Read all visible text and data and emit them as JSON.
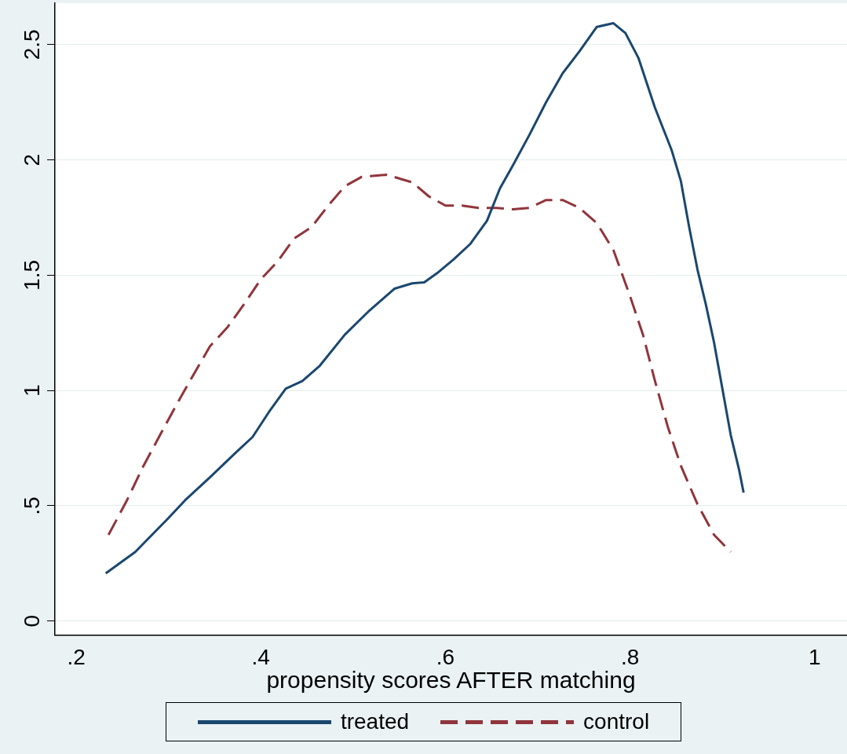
{
  "chart_data": {
    "type": "line",
    "xlabel": "propensity scores AFTER matching",
    "xlim": [
      0.177,
      1.035
    ],
    "xticks": [
      {
        "value": 0.2,
        "label": ".2"
      },
      {
        "value": 0.4,
        "label": ".4"
      },
      {
        "value": 0.6,
        "label": ".6"
      },
      {
        "value": 0.8,
        "label": ".8"
      },
      1
    ],
    "ylim": [
      -0.06,
      2.68
    ],
    "yticks": [
      0,
      {
        "value": 0.5,
        "label": ".5"
      },
      1,
      {
        "value": 1.5,
        "label": "1.5"
      },
      2,
      {
        "value": 2.5,
        "label": "2.5"
      }
    ],
    "grid": "y",
    "legend": "bottom",
    "marker": "none",
    "series": [
      {
        "name": "treated",
        "color": "#1a476f",
        "line_style": "solid",
        "x": [
          0.232,
          0.264,
          0.3,
          0.318,
          0.345,
          0.373,
          0.391,
          0.409,
          0.427,
          0.445,
          0.464,
          0.491,
          0.518,
          0.545,
          0.564,
          0.577,
          0.591,
          0.609,
          0.627,
          0.645,
          0.659,
          0.673,
          0.691,
          0.709,
          0.727,
          0.745,
          0.764,
          0.782,
          0.795,
          0.809,
          0.827,
          0.845,
          0.855,
          0.864,
          0.873,
          0.882,
          0.891,
          0.9,
          0.909,
          0.918,
          0.923
        ],
        "values": [
          0.207,
          0.3,
          0.447,
          0.524,
          0.624,
          0.731,
          0.798,
          0.908,
          1.008,
          1.041,
          1.108,
          1.242,
          1.348,
          1.442,
          1.465,
          1.469,
          1.509,
          1.569,
          1.636,
          1.736,
          1.876,
          1.976,
          2.109,
          2.25,
          2.376,
          2.47,
          2.577,
          2.593,
          2.55,
          2.443,
          2.226,
          2.043,
          1.909,
          1.709,
          1.525,
          1.375,
          1.208,
          1.008,
          0.808,
          0.658,
          0.557
        ]
      },
      {
        "name": "control",
        "color": "#90353b",
        "line_style": "dashed",
        "x": [
          0.235,
          0.255,
          0.273,
          0.291,
          0.309,
          0.327,
          0.345,
          0.364,
          0.382,
          0.4,
          0.418,
          0.436,
          0.455,
          0.473,
          0.491,
          0.509,
          0.536,
          0.564,
          0.582,
          0.6,
          0.618,
          0.636,
          0.655,
          0.673,
          0.691,
          0.709,
          0.727,
          0.745,
          0.764,
          0.782,
          0.8,
          0.814,
          0.827,
          0.841,
          0.855,
          0.873,
          0.891,
          0.909
        ],
        "values": [
          0.374,
          0.524,
          0.674,
          0.808,
          0.941,
          1.068,
          1.192,
          1.275,
          1.375,
          1.482,
          1.559,
          1.659,
          1.709,
          1.802,
          1.886,
          1.926,
          1.936,
          1.903,
          1.842,
          1.802,
          1.802,
          1.792,
          1.792,
          1.786,
          1.792,
          1.826,
          1.826,
          1.792,
          1.726,
          1.609,
          1.409,
          1.242,
          1.041,
          0.841,
          0.674,
          0.507,
          0.374,
          0.3
        ]
      }
    ]
  }
}
